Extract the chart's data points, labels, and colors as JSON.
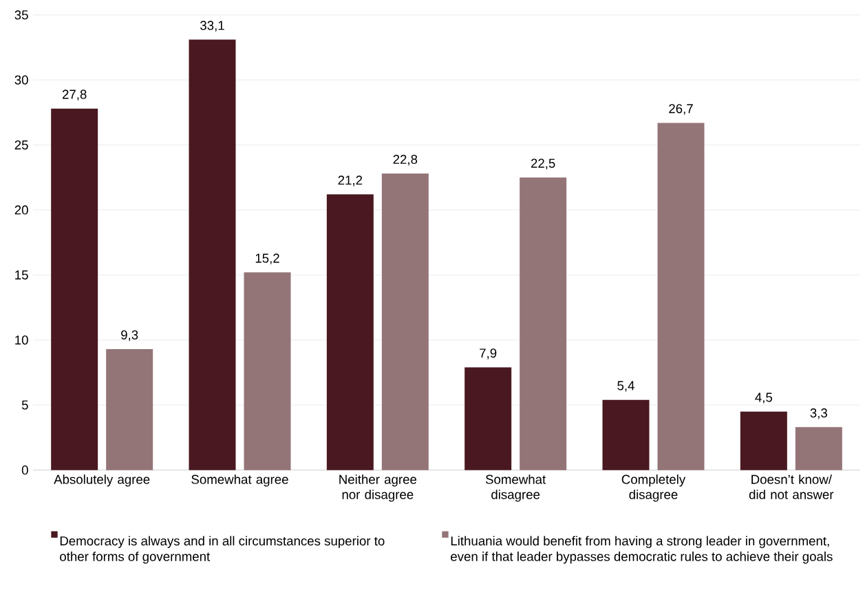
{
  "chart_data": {
    "type": "bar",
    "categories": [
      "Absolutely agree",
      "Somewhat agree",
      "Neither agree nor disagree",
      "Somewhat disagree",
      "Completely disagree",
      "Doesn’t know/ did not answer"
    ],
    "series": [
      {
        "name": "Democracy is always and in all circumstances superior to other forms of government",
        "color": "#4a1820",
        "values": [
          27.8,
          33.1,
          21.2,
          7.9,
          5.4,
          4.5
        ],
        "value_labels": [
          "27,8",
          "33,1",
          "21,2",
          "7,9",
          "5,4",
          "4,5"
        ]
      },
      {
        "name": "Lithuania would benefit from having a strong leader in government, even if that leader bypasses democratic rules to achieve their goals",
        "color": "#947577",
        "values": [
          9.3,
          15.2,
          22.8,
          22.5,
          26.7,
          3.3
        ],
        "value_labels": [
          "9,3",
          "15,2",
          "22,8",
          "22,5",
          "26,7",
          "3,3"
        ]
      }
    ],
    "ylim": [
      0,
      35
    ],
    "yticks": [
      0,
      5,
      10,
      15,
      20,
      25,
      30,
      35
    ],
    "grid": "y",
    "legend": "bottom"
  }
}
